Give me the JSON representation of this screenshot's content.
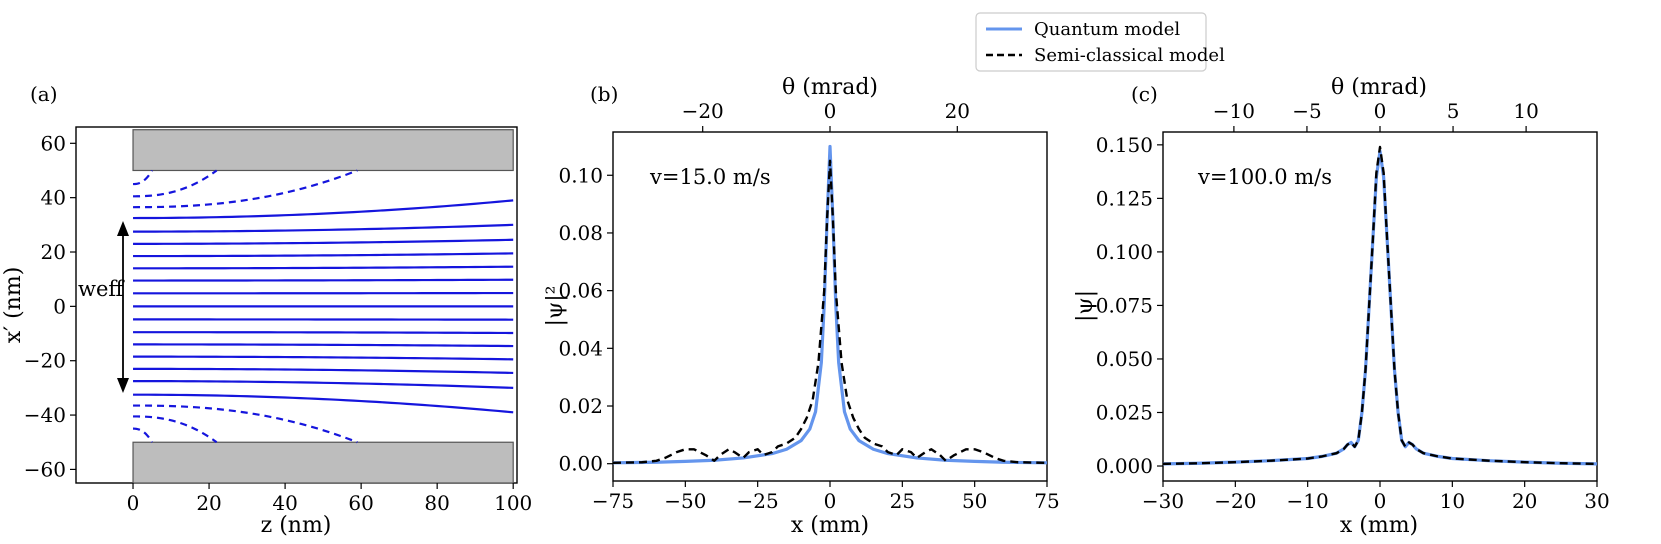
{
  "legend": {
    "entries": [
      {
        "label": "Quantum model",
        "color": "#6495ED",
        "style": "solid"
      },
      {
        "label": "Semi-classical model",
        "color": "#000000",
        "style": "dashed"
      }
    ]
  },
  "chart_data": [
    {
      "id": "a",
      "type": "line",
      "panel_label": "(a)",
      "xlabel": "z (nm)",
      "ylabel": "x′ (nm)",
      "xlim": [
        -15,
        101
      ],
      "ylim": [
        -65,
        66
      ],
      "xticks": [
        0,
        20,
        40,
        60,
        80,
        100
      ],
      "xtick_labels": [
        "0",
        "20",
        "40",
        "60",
        "80",
        "100"
      ],
      "yticks": [
        60,
        40,
        20,
        0,
        -20,
        -40,
        -60
      ],
      "ytick_labels": [
        "60",
        "40",
        "20",
        "0",
        "−20",
        "−40",
        "−60"
      ],
      "plates": [
        {
          "y_from": 50,
          "y_to": 65,
          "x_from": 0,
          "x_to": 100
        },
        {
          "y_from": -65,
          "y_to": -50,
          "x_from": 0,
          "x_to": 100
        }
      ],
      "effective_width_label": "weff",
      "effective_width_range": [
        -31,
        33
      ],
      "line_color": "#1515dd",
      "solid_trajectories": [
        {
          "y0": 32.5,
          "y100": 39
        },
        {
          "y0": 27.5,
          "y100": 30
        },
        {
          "y0": 23,
          "y100": 24.5
        },
        {
          "y0": 18.5,
          "y100": 19.5
        },
        {
          "y0": 14,
          "y100": 14.6
        },
        {
          "y0": 9.5,
          "y100": 9.8
        },
        {
          "y0": 4.8,
          "y100": 4.9
        },
        {
          "y0": 0,
          "y100": 0
        },
        {
          "y0": -4.8,
          "y100": -4.9
        },
        {
          "y0": -9.5,
          "y100": -9.8
        },
        {
          "y0": -14,
          "y100": -14.6
        },
        {
          "y0": -18.5,
          "y100": -19.5
        },
        {
          "y0": -23,
          "y100": -24.5
        },
        {
          "y0": -27.5,
          "y100": -30
        },
        {
          "y0": -32.5,
          "y100": -39
        }
      ],
      "dashed_trajectories": [
        {
          "y0": 36.5,
          "z_end": 59,
          "y_end": 50
        },
        {
          "y0": 40.5,
          "z_end": 22,
          "y_end": 50
        },
        {
          "y0": 45,
          "z_end": 5,
          "y_end": 50
        },
        {
          "y0": -36.5,
          "z_end": 59,
          "y_end": -50
        },
        {
          "y0": -40.5,
          "z_end": 22,
          "y_end": -50
        },
        {
          "y0": -45,
          "z_end": 5,
          "y_end": -50
        }
      ]
    },
    {
      "id": "b",
      "type": "line",
      "panel_label": "(b)",
      "annotation": "v=15.0 m/s",
      "xlabel": "x (mm)",
      "ylabel": "|ψ|²",
      "top_xlabel": "θ (mrad)",
      "xlim": [
        -75,
        75
      ],
      "ylim": [
        -0.006,
        0.115
      ],
      "xticks": [
        -75,
        -50,
        -25,
        0,
        25,
        50,
        75
      ],
      "xtick_labels": [
        "−75",
        "−50",
        "−25",
        "0",
        "25",
        "50",
        "75"
      ],
      "yticks": [
        0.0,
        0.02,
        0.04,
        0.06,
        0.08,
        0.1
      ],
      "ytick_labels": [
        "0.00",
        "0.02",
        "0.04",
        "0.06",
        "0.08",
        "0.10"
      ],
      "top_ticks_x": [
        -44,
        0,
        44
      ],
      "top_tick_labels": [
        "−20",
        "0",
        "20"
      ],
      "series": [
        {
          "name": "Quantum model",
          "color": "#6495ED",
          "style": "solid",
          "x": [
            -75,
            -60,
            -50,
            -40,
            -30,
            -20,
            -15,
            -10,
            -7,
            -5,
            -3,
            -2,
            -1,
            0,
            1,
            2,
            3,
            5,
            7,
            10,
            15,
            20,
            30,
            40,
            50,
            60,
            75
          ],
          "y": [
            0.0003,
            0.0005,
            0.0008,
            0.0012,
            0.002,
            0.0035,
            0.005,
            0.008,
            0.012,
            0.018,
            0.035,
            0.055,
            0.085,
            0.11,
            0.085,
            0.055,
            0.035,
            0.018,
            0.012,
            0.008,
            0.005,
            0.0035,
            0.002,
            0.0012,
            0.0008,
            0.0005,
            0.0003
          ]
        },
        {
          "name": "Semi-classical model",
          "color": "#000000",
          "style": "dashed",
          "x": [
            -75,
            -65,
            -60,
            -57,
            -53,
            -50,
            -47,
            -43,
            -40,
            -38,
            -35,
            -33,
            -30,
            -28,
            -25,
            -23,
            -20,
            -18,
            -15,
            -12,
            -10,
            -8,
            -6,
            -4,
            -2,
            -1,
            0,
            1,
            2,
            4,
            6,
            8,
            10,
            12,
            15,
            18,
            20,
            23,
            25,
            28,
            30,
            33,
            35,
            38,
            40,
            43,
            47,
            50,
            53,
            57,
            60,
            65,
            75
          ],
          "y": [
            0.0003,
            0.0005,
            0.001,
            0.002,
            0.004,
            0.005,
            0.005,
            0.003,
            0.001,
            0.003,
            0.005,
            0.004,
            0.002,
            0.004,
            0.005,
            0.003,
            0.004,
            0.006,
            0.007,
            0.009,
            0.012,
            0.016,
            0.022,
            0.035,
            0.06,
            0.085,
            0.105,
            0.085,
            0.06,
            0.035,
            0.022,
            0.016,
            0.012,
            0.009,
            0.007,
            0.006,
            0.004,
            0.003,
            0.005,
            0.004,
            0.002,
            0.004,
            0.005,
            0.003,
            0.001,
            0.003,
            0.005,
            0.005,
            0.004,
            0.002,
            0.001,
            0.0005,
            0.0003
          ]
        }
      ]
    },
    {
      "id": "c",
      "type": "line",
      "panel_label": "(c)",
      "annotation": "v=100.0 m/s",
      "xlabel": "x (mm)",
      "ylabel": "|ψ|",
      "top_xlabel": "θ (mrad)",
      "xlim": [
        -30,
        30
      ],
      "ylim": [
        -0.007,
        0.156
      ],
      "xticks": [
        -30,
        -20,
        -10,
        0,
        10,
        20,
        30
      ],
      "xtick_labels": [
        "−30",
        "−20",
        "−10",
        "0",
        "10",
        "20",
        "30"
      ],
      "yticks": [
        0.0,
        0.025,
        0.05,
        0.075,
        0.1,
        0.125,
        0.15
      ],
      "ytick_labels": [
        "0.000",
        "0.025",
        "0.050",
        "0.075",
        "0.100",
        "0.125",
        "0.150"
      ],
      "top_ticks_x": [
        -20.2,
        -10.1,
        0,
        10.1,
        20.2
      ],
      "top_tick_labels": [
        "−10",
        "−5",
        "0",
        "5",
        "10"
      ],
      "series": [
        {
          "name": "Quantum model",
          "color": "#6495ED",
          "style": "solid",
          "x": [
            -30,
            -25,
            -20,
            -15,
            -10,
            -8,
            -6,
            -5,
            -4.5,
            -4,
            -3.5,
            -3,
            -2.5,
            -2,
            -1.5,
            -1,
            -0.5,
            0,
            0.5,
            1,
            1.5,
            2,
            2.5,
            3,
            3.5,
            4,
            4.5,
            5,
            6,
            8,
            10,
            15,
            20,
            25,
            30
          ],
          "y": [
            0.001,
            0.0013,
            0.0018,
            0.0025,
            0.0035,
            0.0045,
            0.006,
            0.008,
            0.01,
            0.011,
            0.009,
            0.012,
            0.025,
            0.045,
            0.075,
            0.105,
            0.135,
            0.147,
            0.135,
            0.105,
            0.075,
            0.045,
            0.025,
            0.012,
            0.009,
            0.011,
            0.01,
            0.008,
            0.006,
            0.0045,
            0.0035,
            0.0025,
            0.0018,
            0.0013,
            0.001
          ]
        },
        {
          "name": "Semi-classical model",
          "color": "#000000",
          "style": "dashed",
          "x": [
            -30,
            -25,
            -20,
            -15,
            -10,
            -8,
            -6,
            -5,
            -4.5,
            -4,
            -3.5,
            -3,
            -2.5,
            -2,
            -1.5,
            -1,
            -0.5,
            0,
            0.5,
            1,
            1.5,
            2,
            2.5,
            3,
            3.5,
            4,
            4.5,
            5,
            6,
            8,
            10,
            15,
            20,
            25,
            30
          ],
          "y": [
            0.001,
            0.0013,
            0.0018,
            0.0025,
            0.0035,
            0.0045,
            0.006,
            0.008,
            0.01,
            0.011,
            0.009,
            0.012,
            0.025,
            0.045,
            0.075,
            0.105,
            0.137,
            0.149,
            0.137,
            0.105,
            0.075,
            0.045,
            0.025,
            0.012,
            0.009,
            0.011,
            0.01,
            0.008,
            0.006,
            0.0045,
            0.0035,
            0.0025,
            0.0018,
            0.0013,
            0.001
          ]
        }
      ]
    }
  ]
}
